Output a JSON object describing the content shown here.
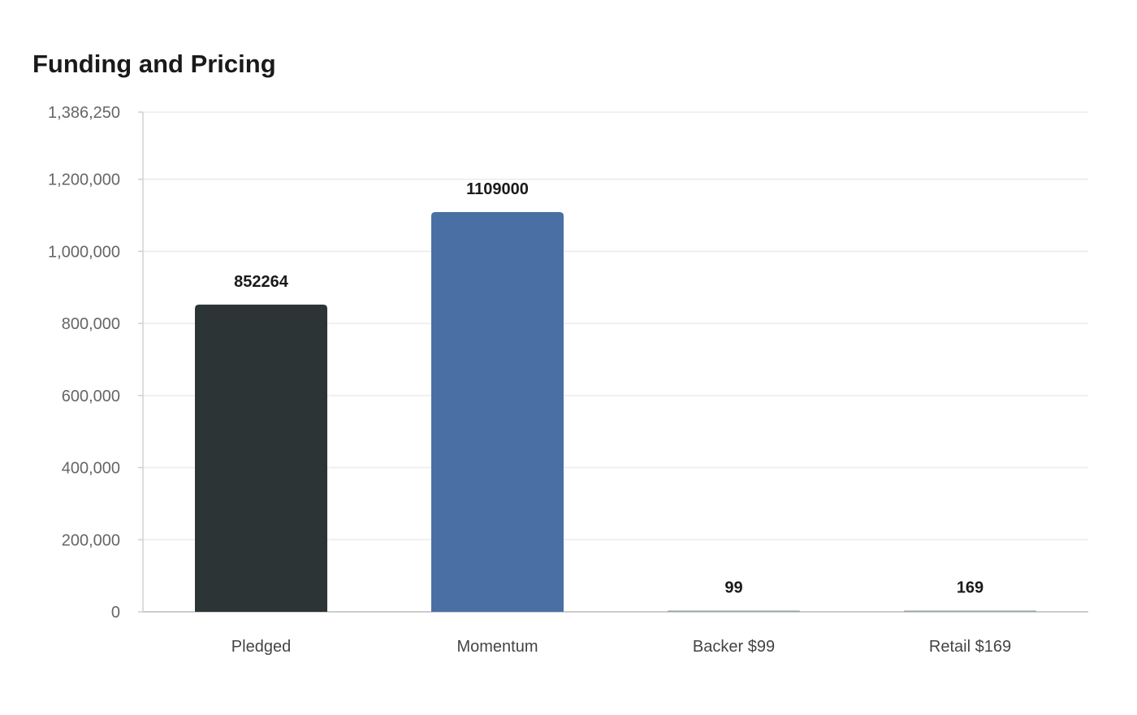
{
  "chart_data": {
    "type": "bar",
    "title": "Funding and Pricing",
    "categories": [
      "Pledged",
      "Momentum",
      "Backer $99",
      "Retail $169"
    ],
    "values": [
      852264,
      1109000,
      99,
      169
    ],
    "data_labels": [
      "852264",
      "1109000",
      "99",
      "169"
    ],
    "colors": [
      "#2d3436",
      "#4a6fa5",
      "#95a5a6",
      "#95a5a6"
    ],
    "ylim": [
      0,
      1386250
    ],
    "yticks": [
      0,
      200000,
      400000,
      600000,
      800000,
      1000000,
      1200000,
      1386250
    ],
    "ytick_labels": [
      "0",
      "200,000",
      "400,000",
      "600,000",
      "800,000",
      "1,000,000",
      "1,200,000",
      "1,386,250"
    ],
    "xlabel": "",
    "ylabel": "",
    "grid": true,
    "legend": "none"
  }
}
